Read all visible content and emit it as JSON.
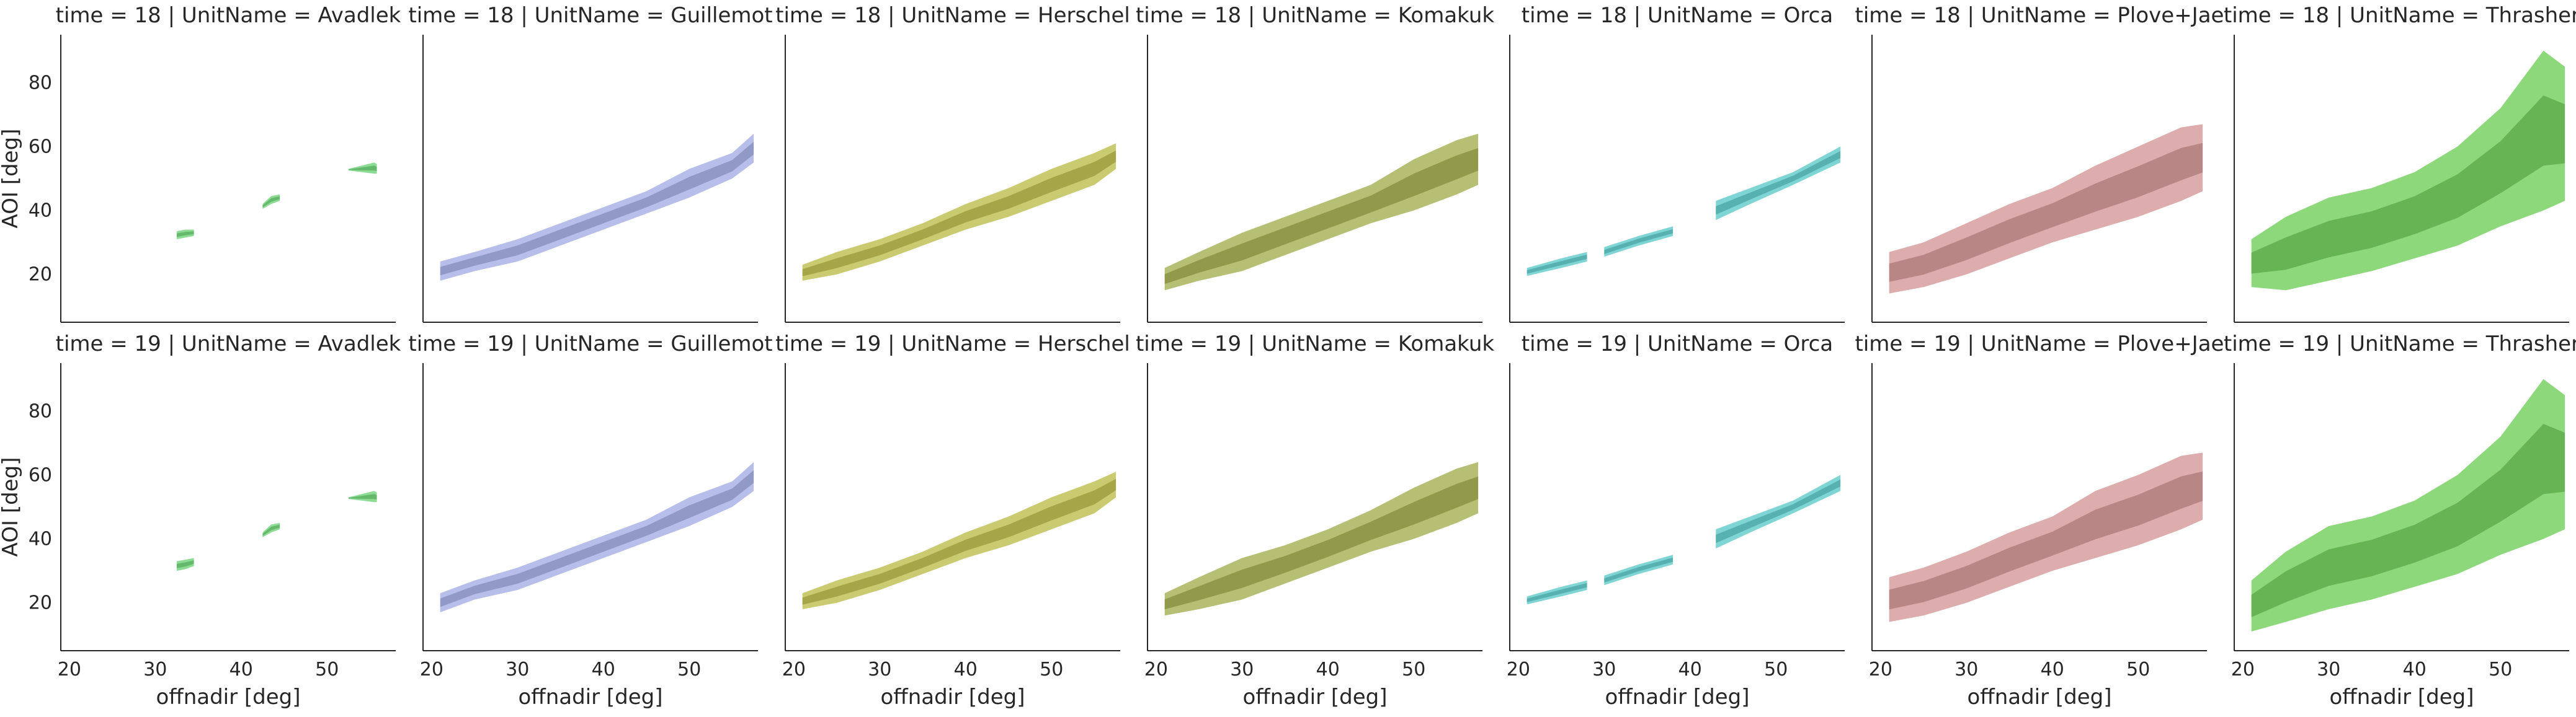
{
  "chart_data": {
    "type": "area",
    "layout": "facet-grid",
    "row_var": "time",
    "col_var": "UnitName",
    "rows": [
      18,
      19
    ],
    "cols": [
      "Avadlek",
      "Guillemot",
      "Herschel",
      "Komakuk",
      "Orca",
      "Plove+Jae",
      "Thrasher"
    ],
    "xlabel": "offnadir [deg]",
    "ylabel": "AOI [deg]",
    "xlim": [
      19,
      58
    ],
    "ylim": [
      5,
      95
    ],
    "xticks": [
      20,
      30,
      40,
      50
    ],
    "yticks": [
      20,
      40,
      60,
      80
    ],
    "grid": false,
    "panels": [
      {
        "time": 18,
        "unit": "Avadlek",
        "title": "time = 18 | UnitName = Avadlek",
        "color": "#5fcf6a",
        "segments": [
          [
            [
              32.5,
              31,
              33.5
            ],
            [
              33.5,
              31.5,
              34
            ],
            [
              34.5,
              32,
              34
            ]
          ],
          [
            [
              42.5,
              40.5,
              42
            ],
            [
              43.5,
              42,
              44.5
            ],
            [
              44.5,
              43,
              45
            ]
          ],
          [
            [
              52.5,
              52.5,
              53
            ],
            [
              55.5,
              51.5,
              55
            ],
            [
              55.8,
              51.5,
              54.5
            ]
          ]
        ]
      },
      {
        "time": 18,
        "unit": "Guillemot",
        "title": "time = 18 | UnitName = Guillemot",
        "color": "#9aa5e0",
        "segments": [
          [
            [
              21,
              18,
              24
            ],
            [
              25,
              21,
              27
            ],
            [
              30,
              24,
              31
            ],
            [
              35,
              29,
              36
            ],
            [
              40,
              34,
              41
            ],
            [
              45,
              39,
              46
            ],
            [
              50,
              44,
              53
            ],
            [
              55,
              50,
              58
            ],
            [
              57.5,
              55,
              64
            ]
          ]
        ]
      },
      {
        "time": 18,
        "unit": "Herschel",
        "title": "time = 18 | UnitName = Herschel",
        "color": "#b5b53a",
        "segments": [
          [
            [
              21,
              18,
              23
            ],
            [
              25,
              20,
              27
            ],
            [
              30,
              24,
              31
            ],
            [
              35,
              29,
              36
            ],
            [
              40,
              34,
              42
            ],
            [
              45,
              38,
              47
            ],
            [
              50,
              43,
              53
            ],
            [
              55,
              48,
              58
            ],
            [
              57.5,
              53,
              61
            ]
          ]
        ]
      },
      {
        "time": 18,
        "unit": "Komakuk",
        "title": "time = 18 | UnitName = Komakuk",
        "color": "#9aa63e",
        "segments": [
          [
            [
              21,
              15,
              22
            ],
            [
              25,
              18,
              27
            ],
            [
              30,
              21,
              33
            ],
            [
              35,
              26,
              38
            ],
            [
              40,
              31,
              43
            ],
            [
              45,
              36,
              48
            ],
            [
              50,
              40,
              56
            ],
            [
              55,
              45,
              62
            ],
            [
              57.5,
              48,
              64
            ]
          ]
        ]
      },
      {
        "time": 18,
        "unit": "Orca",
        "title": "time = 18 | UnitName = Orca",
        "color": "#4ec4c4",
        "segments": [
          [
            [
              21,
              19.5,
              22
            ],
            [
              25,
              22,
              25
            ],
            [
              28,
              24,
              27
            ]
          ],
          [
            [
              30,
              25.5,
              28.5
            ],
            [
              34,
              29,
              32
            ],
            [
              38,
              32,
              35
            ]
          ],
          [
            [
              43,
              37,
              43
            ],
            [
              47,
              42,
              47
            ],
            [
              52,
              48,
              52
            ],
            [
              57.5,
              55,
              60
            ]
          ]
        ]
      },
      {
        "time": 18,
        "unit": "Plove+Jae",
        "title": "time = 18 | UnitName = Plove+Jae",
        "color": "#d08c8c",
        "segments": [
          [
            [
              21,
              14,
              27
            ],
            [
              25,
              16,
              30
            ],
            [
              30,
              20,
              36
            ],
            [
              35,
              25,
              42
            ],
            [
              40,
              30,
              47
            ],
            [
              45,
              34,
              54
            ],
            [
              50,
              38,
              60
            ],
            [
              55,
              43,
              66
            ],
            [
              57.5,
              46,
              67
            ]
          ]
        ]
      },
      {
        "time": 18,
        "unit": "Thrasher",
        "title": "time = 18 | UnitName = Thrasher",
        "color": "#62c94a",
        "segments": [
          [
            [
              21,
              16,
              31
            ],
            [
              25,
              15,
              38
            ],
            [
              30,
              18,
              44
            ],
            [
              35,
              21,
              47
            ],
            [
              40,
              25,
              52
            ],
            [
              45,
              29,
              60
            ],
            [
              50,
              35,
              72
            ],
            [
              55,
              40,
              90
            ],
            [
              57.5,
              43,
              85
            ]
          ]
        ]
      },
      {
        "time": 19,
        "unit": "Avadlek",
        "title": "time = 19 | UnitName = Avadlek",
        "color": "#5fcf6a",
        "segments": [
          [
            [
              32.5,
              30,
              33
            ],
            [
              33.5,
              30.5,
              33.5
            ],
            [
              34.5,
              31.5,
              34
            ]
          ],
          [
            [
              42.5,
              40.5,
              42
            ],
            [
              43.5,
              42,
              44.5
            ],
            [
              44.5,
              43,
              45
            ]
          ],
          [
            [
              52.5,
              52.5,
              53
            ],
            [
              55.5,
              51.5,
              55
            ],
            [
              55.8,
              51.5,
              54.5
            ]
          ]
        ]
      },
      {
        "time": 19,
        "unit": "Guillemot",
        "title": "time = 19 | UnitName = Guillemot",
        "color": "#9aa5e0",
        "segments": [
          [
            [
              21,
              17,
              23
            ],
            [
              25,
              21,
              27
            ],
            [
              30,
              24,
              31
            ],
            [
              35,
              29,
              36
            ],
            [
              40,
              34,
              41
            ],
            [
              45,
              39,
              46
            ],
            [
              50,
              44,
              53
            ],
            [
              55,
              50,
              58
            ],
            [
              57.5,
              55,
              64
            ]
          ]
        ]
      },
      {
        "time": 19,
        "unit": "Herschel",
        "title": "time = 19 | UnitName = Herschel",
        "color": "#b5b53a",
        "segments": [
          [
            [
              21,
              18,
              23
            ],
            [
              25,
              20,
              27
            ],
            [
              30,
              24,
              31
            ],
            [
              35,
              29,
              36
            ],
            [
              40,
              34,
              42
            ],
            [
              45,
              38,
              47
            ],
            [
              50,
              43,
              53
            ],
            [
              55,
              48,
              58
            ],
            [
              57.5,
              53,
              61
            ]
          ]
        ]
      },
      {
        "time": 19,
        "unit": "Komakuk",
        "title": "time = 19 | UnitName = Komakuk",
        "color": "#9aa63e",
        "segments": [
          [
            [
              21,
              16,
              23
            ],
            [
              25,
              18,
              28
            ],
            [
              30,
              21,
              34
            ],
            [
              35,
              26,
              38
            ],
            [
              40,
              31,
              43
            ],
            [
              45,
              36,
              49
            ],
            [
              50,
              40,
              56
            ],
            [
              55,
              45,
              62
            ],
            [
              57.5,
              48,
              64
            ]
          ]
        ]
      },
      {
        "time": 19,
        "unit": "Orca",
        "title": "time = 19 | UnitName = Orca",
        "color": "#4ec4c4",
        "segments": [
          [
            [
              21,
              19.5,
              22
            ],
            [
              25,
              22,
              25
            ],
            [
              28,
              24,
              27
            ]
          ],
          [
            [
              30,
              25.5,
              28.5
            ],
            [
              34,
              29,
              32
            ],
            [
              38,
              32,
              35
            ]
          ],
          [
            [
              43,
              37,
              43
            ],
            [
              47,
              42,
              47
            ],
            [
              52,
              48,
              52
            ],
            [
              57.5,
              55,
              60
            ]
          ]
        ]
      },
      {
        "time": 19,
        "unit": "Plove+Jae",
        "title": "time = 19 | UnitName = Plove+Jae",
        "color": "#d08c8c",
        "segments": [
          [
            [
              21,
              14,
              28
            ],
            [
              25,
              16,
              31
            ],
            [
              30,
              20,
              36
            ],
            [
              35,
              25,
              42
            ],
            [
              40,
              30,
              47
            ],
            [
              45,
              34,
              55
            ],
            [
              50,
              38,
              60
            ],
            [
              55,
              43,
              66
            ],
            [
              57.5,
              46,
              67
            ]
          ]
        ]
      },
      {
        "time": 19,
        "unit": "Thrasher",
        "title": "time = 19 | UnitName = Thrasher",
        "color": "#62c94a",
        "segments": [
          [
            [
              21,
              11,
              27
            ],
            [
              25,
              14,
              36
            ],
            [
              30,
              18,
              44
            ],
            [
              35,
              21,
              47
            ],
            [
              40,
              25,
              52
            ],
            [
              45,
              29,
              60
            ],
            [
              50,
              35,
              72
            ],
            [
              55,
              40,
              90
            ],
            [
              57.5,
              43,
              85
            ]
          ]
        ]
      }
    ]
  }
}
